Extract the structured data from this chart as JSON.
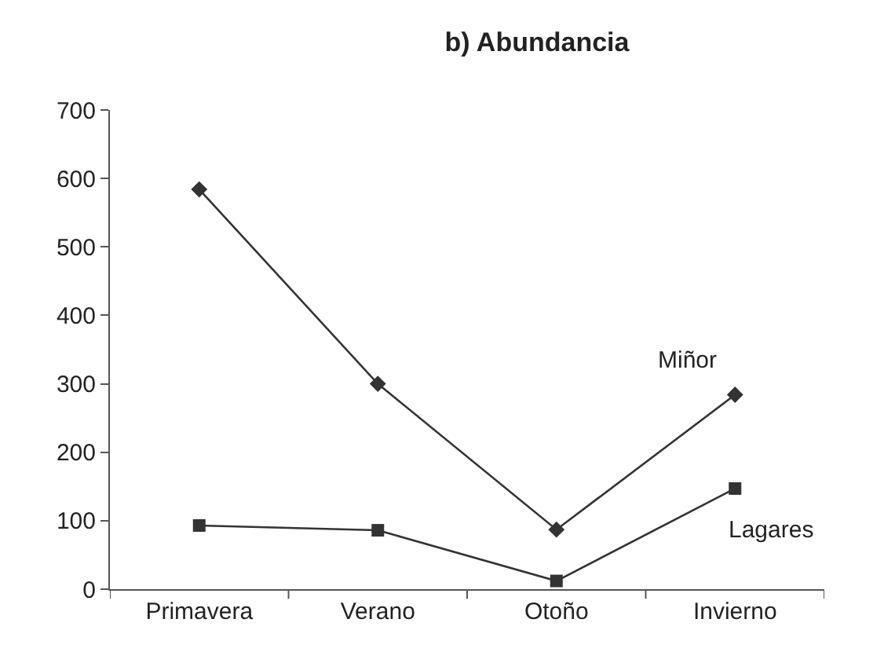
{
  "chart_data": {
    "type": "line",
    "title": "b) Abundancia",
    "categories": [
      "Primavera",
      "Verano",
      "Otoño",
      "Invierno"
    ],
    "series": [
      {
        "name": "Miñor",
        "color": "#333333",
        "marker": "diamond",
        "values": [
          584,
          300,
          87,
          284
        ]
      },
      {
        "name": "Lagares",
        "color": "#333333",
        "marker": "square",
        "values": [
          93,
          86,
          12,
          147
        ]
      }
    ],
    "ylim": [
      0,
      700
    ],
    "yticks": [
      0,
      100,
      200,
      300,
      400,
      500,
      600,
      700
    ],
    "grid": false,
    "legend": false,
    "line_style": "solid"
  }
}
